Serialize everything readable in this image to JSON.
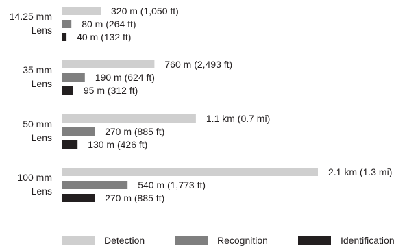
{
  "chart_data": {
    "type": "bar",
    "orientation": "horizontal",
    "categories": [
      [
        "14.25 mm",
        "Lens"
      ],
      [
        "35 mm",
        "Lens"
      ],
      [
        "50 mm",
        "Lens"
      ],
      [
        "100 mm",
        "Lens"
      ]
    ],
    "series": [
      {
        "name": "Detection",
        "color": "#cfcfcf",
        "values": [
          320,
          760,
          1100,
          2100
        ],
        "labels": [
          "320 m (1,050 ft)",
          "760 m (2,493 ft)",
          "1.1 km (0.7 mi)",
          "2.1 km (1.3 mi)"
        ]
      },
      {
        "name": "Recognition",
        "color": "#7f7f7f",
        "values": [
          80,
          190,
          270,
          540
        ],
        "labels": [
          "80 m (264 ft)",
          "190 m (624 ft)",
          "270 m (885 ft)",
          "540 m (1,773 ft)"
        ]
      },
      {
        "name": "Identification",
        "color": "#231f20",
        "values": [
          40,
          95,
          130,
          270
        ],
        "labels": [
          "40 m (132 ft)",
          "95 m (312 ft)",
          "130 m (426 ft)",
          "270 m (885 ft)"
        ]
      }
    ],
    "units": "m",
    "xlim": [
      0,
      2100
    ],
    "grid": false,
    "legend_position": "bottom"
  }
}
